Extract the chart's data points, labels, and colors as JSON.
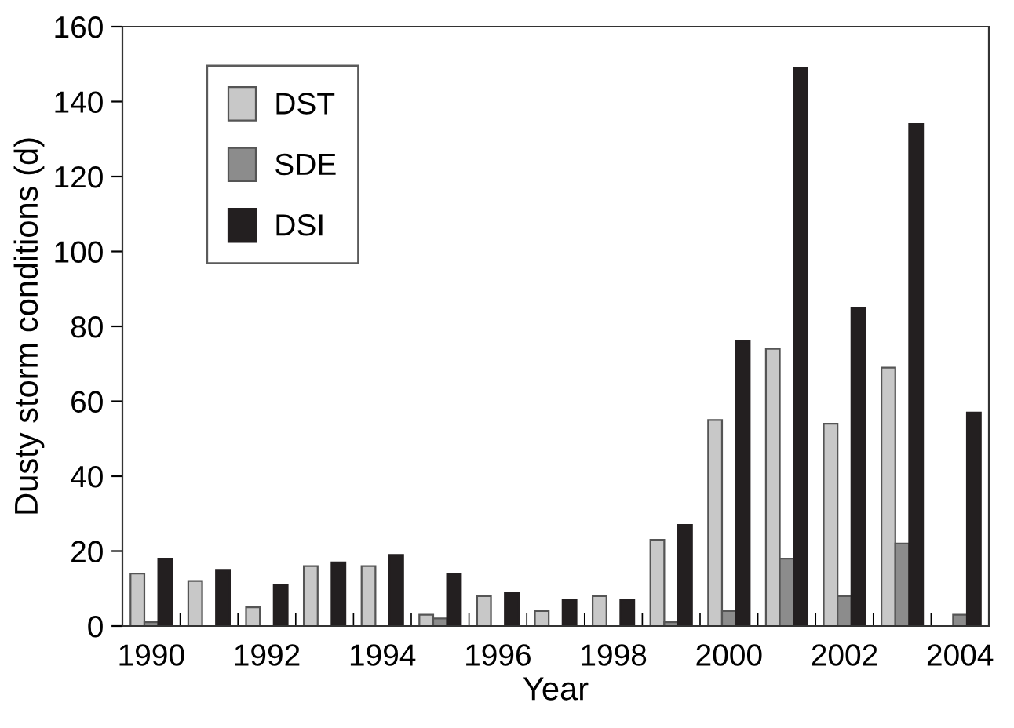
{
  "chart_data": {
    "type": "bar",
    "xlabel": "Year",
    "ylabel": "Dusty storm conditions (d)",
    "categories": [
      "1990",
      null,
      "1992",
      null,
      "1994",
      null,
      "1996",
      null,
      "1998",
      null,
      "2000",
      null,
      "2002",
      null,
      "2004"
    ],
    "series": [
      {
        "name": "DST",
        "color": "#c8c8c8",
        "values": [
          14,
          12,
          5,
          16,
          16,
          3,
          8,
          4,
          8,
          23,
          55,
          74,
          54,
          69,
          0
        ]
      },
      {
        "name": "SDE",
        "color": "#8c8c8c",
        "values": [
          1,
          0,
          0,
          0,
          0,
          2,
          0,
          0,
          0,
          1,
          4,
          18,
          8,
          22,
          3
        ]
      },
      {
        "name": "DSI",
        "color": "#231f20",
        "values": [
          18,
          15,
          11,
          17,
          19,
          14,
          9,
          7,
          7,
          27,
          76,
          149,
          85,
          134,
          57
        ]
      }
    ],
    "ylim": [
      0,
      160
    ],
    "yticks": [
      0,
      20,
      40,
      60,
      80,
      100,
      120,
      140,
      160
    ],
    "grid": false,
    "legend": "top left"
  }
}
